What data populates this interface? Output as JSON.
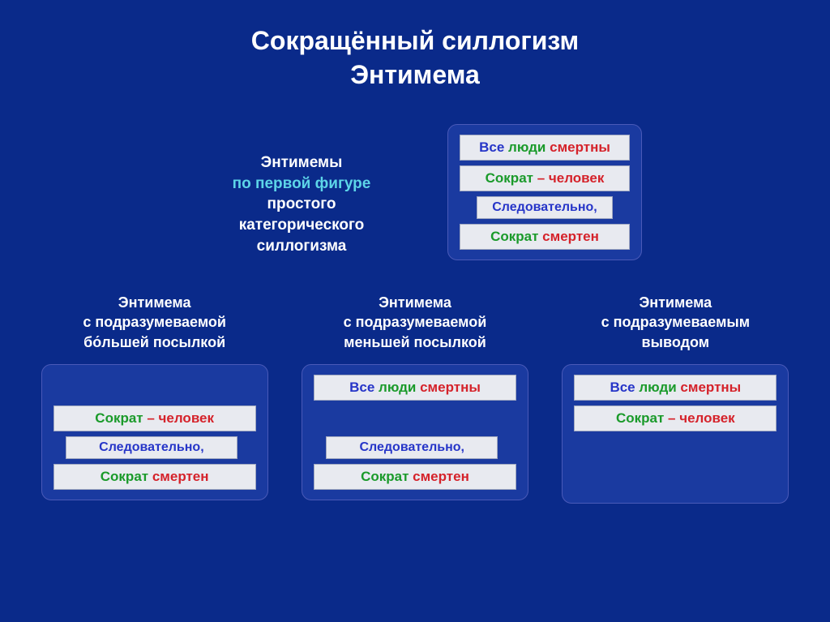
{
  "colors": {
    "background": "#0a2a8a",
    "card_bg": "#1a3aa0",
    "card_border": "#4a5ab8",
    "slot_bg": "#e8eaf0",
    "slot_border": "#a0a8c0",
    "text_white": "#ffffff",
    "text_cyan": "#5dd5e8",
    "text_blue": "#2635c8",
    "text_green": "#1a9a2a",
    "text_red": "#d5222a"
  },
  "title_l1": "Сокращённый силлогизм",
  "title_l2": "Энтимема",
  "top_label": {
    "l1a": "Энтимемы",
    "l1b": "по первой фигуре",
    "l2": "простого",
    "l3": "категорического",
    "l4": "силлогизма"
  },
  "premise": {
    "all": "Все ",
    "people": "люди ",
    "mortal_pl": "смертны",
    "socrates": "Сократ ",
    "dash_human": "– человек",
    "therefore": "Следовательно,",
    "mortal": "смертен"
  },
  "cols": {
    "c1": {
      "l1": "Энтимема",
      "l2": "с подразумеваемой",
      "l3": "бо́льшей посылкой"
    },
    "c2": {
      "l1": "Энтимема",
      "l2": "с подразумеваемой",
      "l3": "меньшей посылкой"
    },
    "c3": {
      "l1": "Энтимема",
      "l2": "с подразумеваемым",
      "l3": "выводом"
    }
  }
}
